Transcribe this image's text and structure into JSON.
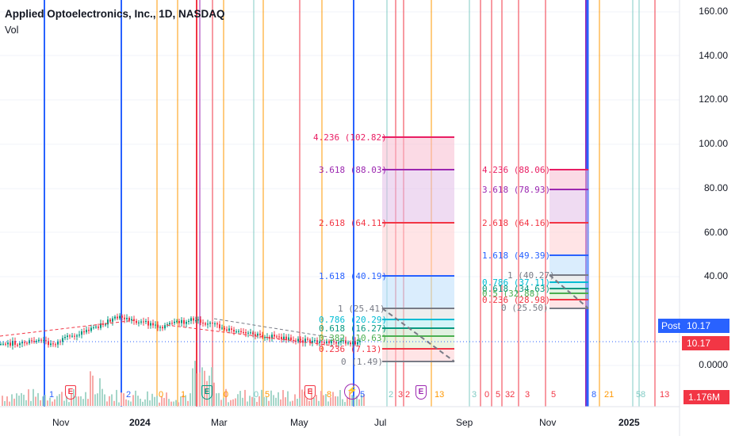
{
  "header": {
    "title": "Applied Optoelectronics, Inc., 1D, NASDAQ",
    "indicator": "Vol"
  },
  "price_axis": {
    "labels": [
      "160.00",
      "140.00",
      "120.00",
      "100.00",
      "80.00",
      "60.00",
      "40.00",
      "0.0000"
    ]
  },
  "time_axis": {
    "labels": [
      "Nov",
      "2024",
      "Mar",
      "May",
      "Jul",
      "Sep",
      "Nov",
      "2025"
    ]
  },
  "badges": {
    "post_label": "Post",
    "post_price": "10.17",
    "last_price": "10.17",
    "volume": "1.176M"
  },
  "colors": {
    "red": "#f23645",
    "blue": "#2962ff",
    "orange": "#ff9800",
    "teal": "#80cbc4",
    "purple": "#9c27b0",
    "green": "#089981",
    "gray": "#787b86"
  },
  "fib1": {
    "levels": [
      {
        "label": "4.236 (102.82)",
        "color": "#e91e63"
      },
      {
        "label": "3.618 (88.03)",
        "color": "#9c27b0"
      },
      {
        "label": "2.618 (64.11)",
        "color": "#f23645"
      },
      {
        "label": "1.618 (40.19)",
        "color": "#2962ff"
      },
      {
        "label": "1 (25.41)",
        "color": "#787b86"
      },
      {
        "label": "0.786 (20.29)",
        "color": "#00bcd4"
      },
      {
        "label": "0.618 (16.27)",
        "color": "#089981"
      },
      {
        "label": "0.382 (10.63)",
        "color": "#4caf50"
      },
      {
        "label": "0.236 (7.13)",
        "color": "#f23645"
      },
      {
        "label": "0 (1.49)",
        "color": "#787b86"
      }
    ]
  },
  "fib2": {
    "levels": [
      {
        "label": "4.236 (88.06)",
        "color": "#e91e63"
      },
      {
        "label": "3.618 (78.93)",
        "color": "#9c27b0"
      },
      {
        "label": "2.618 (64.16)",
        "color": "#f23645"
      },
      {
        "label": "1.618 (49.39)",
        "color": "#2962ff"
      },
      {
        "label": "1 (40.27)",
        "color": "#787b86"
      },
      {
        "label": "0.786 (37.11)",
        "color": "#00bcd4"
      },
      {
        "label": "0.618 (34.63)",
        "color": "#089981"
      },
      {
        "label": "0.5 (32.88)",
        "color": "#4caf50"
      },
      {
        "label": "0.236 (28.98)",
        "color": "#f23645"
      },
      {
        "label": "0 (25.50)",
        "color": "#787b86"
      }
    ]
  },
  "cycle_counts": [
    {
      "text": "1",
      "color": "#2962ff"
    },
    {
      "text": "2",
      "color": "#2962ff"
    },
    {
      "text": "0",
      "color": "#ff9800"
    },
    {
      "text": "1",
      "color": "#ff9800"
    },
    {
      "text": "0",
      "color": "#ff9800"
    },
    {
      "text": "0",
      "color": "#80cbc4"
    },
    {
      "text": "5",
      "color": "#ff9800"
    },
    {
      "text": "8",
      "color": "#ff9800"
    },
    {
      "text": "5",
      "color": "#2962ff"
    },
    {
      "text": "2",
      "color": "#80cbc4"
    },
    {
      "text": "3",
      "color": "#f23645"
    },
    {
      "text": "2",
      "color": "#f23645"
    },
    {
      "text": "13",
      "color": "#ff9800"
    },
    {
      "text": "3",
      "color": "#80cbc4"
    },
    {
      "text": "0",
      "color": "#f23645"
    },
    {
      "text": "5",
      "color": "#f23645"
    },
    {
      "text": "32",
      "color": "#f23645"
    },
    {
      "text": "3",
      "color": "#f23645"
    },
    {
      "text": "5",
      "color": "#f23645"
    },
    {
      "text": "8",
      "color": "#2962ff"
    },
    {
      "text": "21",
      "color": "#ff9800"
    },
    {
      "text": "5",
      "color": "#80cbc4"
    },
    {
      "text": "8",
      "color": "#80cbc4"
    },
    {
      "text": "13",
      "color": "#f23645"
    }
  ],
  "events": [
    {
      "text": "E",
      "color": "#f23645"
    },
    {
      "text": "E",
      "color": "#089981"
    },
    {
      "text": "E",
      "color": "#f23645"
    },
    {
      "text": "E",
      "color": "#9c27b0"
    }
  ],
  "split_icon": {
    "name": "lightning-icon",
    "glyph": "⚡",
    "color": "#9c27b0"
  }
}
